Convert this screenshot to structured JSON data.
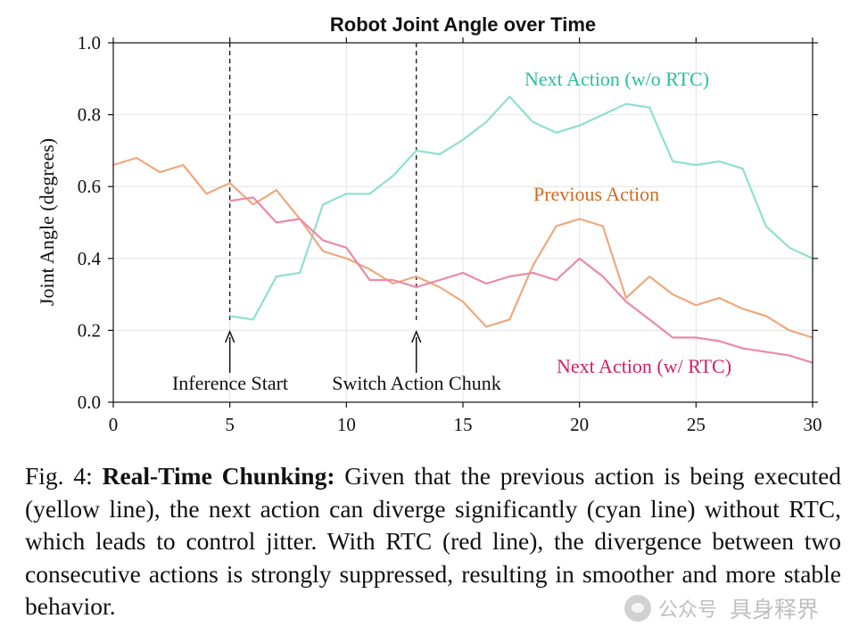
{
  "chart_data": {
    "type": "line",
    "title": "Robot Joint Angle over Time",
    "xlabel": "",
    "ylabel": "Joint Angle (degrees)",
    "xlim": [
      0,
      30
    ],
    "ylim": [
      0.0,
      1.0
    ],
    "xticks": [
      "0",
      "5",
      "10",
      "15",
      "20",
      "25",
      "30"
    ],
    "yticks": [
      "0.0",
      "0.2",
      "0.4",
      "0.6",
      "0.8",
      "1.0"
    ],
    "grid": true,
    "series": [
      {
        "name": "Previous Action",
        "color": "#f0a87c",
        "label_color": "#d2691e",
        "x": [
          0,
          1,
          2,
          3,
          4,
          5,
          6,
          7,
          8,
          9,
          10,
          11,
          12,
          13,
          14,
          15,
          16,
          17,
          18,
          19,
          20,
          21,
          22,
          23,
          24,
          25,
          26,
          27,
          28,
          29,
          30
        ],
        "y": [
          0.66,
          0.68,
          0.64,
          0.66,
          0.58,
          0.61,
          0.55,
          0.59,
          0.51,
          0.42,
          0.4,
          0.37,
          0.33,
          0.35,
          0.32,
          0.28,
          0.21,
          0.23,
          0.38,
          0.49,
          0.51,
          0.49,
          0.29,
          0.35,
          0.3,
          0.27,
          0.29,
          0.26,
          0.24,
          0.2,
          0.18
        ]
      },
      {
        "name": "Next Action (w/o RTC)",
        "color": "#8ee0d0",
        "label_color": "#2abf9e",
        "x": [
          5,
          6,
          7,
          8,
          9,
          10,
          11,
          12,
          13,
          14,
          15,
          16,
          17,
          18,
          19,
          20,
          21,
          22,
          23,
          24,
          25,
          26,
          27,
          28,
          29,
          30
        ],
        "y": [
          0.24,
          0.23,
          0.35,
          0.36,
          0.55,
          0.58,
          0.58,
          0.63,
          0.7,
          0.69,
          0.73,
          0.78,
          0.85,
          0.78,
          0.75,
          0.77,
          0.8,
          0.83,
          0.82,
          0.67,
          0.66,
          0.67,
          0.65,
          0.49,
          0.43,
          0.4
        ]
      },
      {
        "name": "Next Action (w/ RTC)",
        "color": "#ec8aa6",
        "label_color": "#d21f63",
        "x": [
          5,
          6,
          7,
          8,
          9,
          10,
          11,
          12,
          13,
          14,
          15,
          16,
          17,
          18,
          19,
          20,
          21,
          22,
          23,
          24,
          25,
          26,
          27,
          28,
          29,
          30
        ],
        "y": [
          0.56,
          0.57,
          0.5,
          0.51,
          0.45,
          0.43,
          0.34,
          0.34,
          0.32,
          0.34,
          0.36,
          0.33,
          0.35,
          0.36,
          0.34,
          0.4,
          0.35,
          0.28,
          0.23,
          0.18,
          0.18,
          0.17,
          0.15,
          0.14,
          0.13,
          0.11
        ]
      }
    ],
    "annotations": [
      {
        "text": "Inference Start",
        "x": 5
      },
      {
        "text": "Switch Action Chunk",
        "x": 13
      }
    ]
  },
  "caption": {
    "prefix": "Fig. 4:",
    "bold": "Real-Time Chunking:",
    "text": "Given that the previous action is being executed (yellow line), the next action can diverge significantly (cyan line) without RTC, which leads to control jitter. With RTC (red line), the divergence between two consecutive actions is strongly suppressed, resulting in smoother and more stable behavior."
  },
  "watermark": {
    "channel": "公众号",
    "brand": "具身释界"
  }
}
